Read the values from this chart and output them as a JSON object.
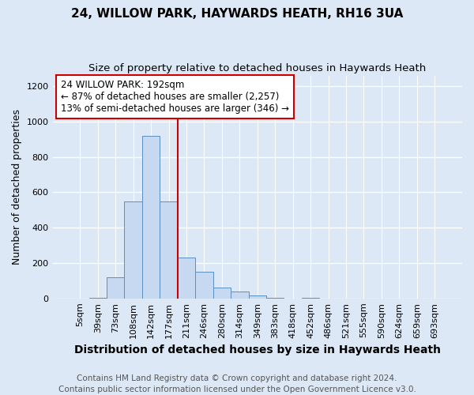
{
  "title1": "24, WILLOW PARK, HAYWARDS HEATH, RH16 3UA",
  "title2": "Size of property relative to detached houses in Haywards Heath",
  "xlabel": "Distribution of detached houses by size in Haywards Heath",
  "ylabel": "Number of detached properties",
  "footer": "Contains HM Land Registry data © Crown copyright and database right 2024.\nContains public sector information licensed under the Open Government Licence v3.0.",
  "bin_labels": [
    "5sqm",
    "39sqm",
    "73sqm",
    "108sqm",
    "142sqm",
    "177sqm",
    "211sqm",
    "246sqm",
    "280sqm",
    "314sqm",
    "349sqm",
    "383sqm",
    "418sqm",
    "452sqm",
    "486sqm",
    "521sqm",
    "555sqm",
    "590sqm",
    "624sqm",
    "659sqm",
    "693sqm"
  ],
  "bar_values": [
    0,
    5,
    120,
    550,
    920,
    550,
    230,
    150,
    60,
    40,
    15,
    5,
    0,
    5,
    0,
    0,
    0,
    0,
    0,
    0,
    0
  ],
  "bar_color": "#c6d9f0",
  "bar_edge_color": "#5a8fc3",
  "vline_x": 5.51,
  "vline_color": "#cc0000",
  "annotation_text": "24 WILLOW PARK: 192sqm\n← 87% of detached houses are smaller (2,257)\n13% of semi-detached houses are larger (346) →",
  "annotation_box_color": "#ffffff",
  "annotation_box_edge_color": "#cc0000",
  "ylim": [
    0,
    1260
  ],
  "yticks": [
    0,
    200,
    400,
    600,
    800,
    1000,
    1200
  ],
  "background_color": "#dce8f5",
  "grid_color": "#ffffff",
  "title1_fontsize": 11,
  "title2_fontsize": 9.5,
  "xlabel_fontsize": 10,
  "ylabel_fontsize": 9,
  "tick_fontsize": 8,
  "footer_fontsize": 7.5,
  "annotation_fontsize": 8.5
}
